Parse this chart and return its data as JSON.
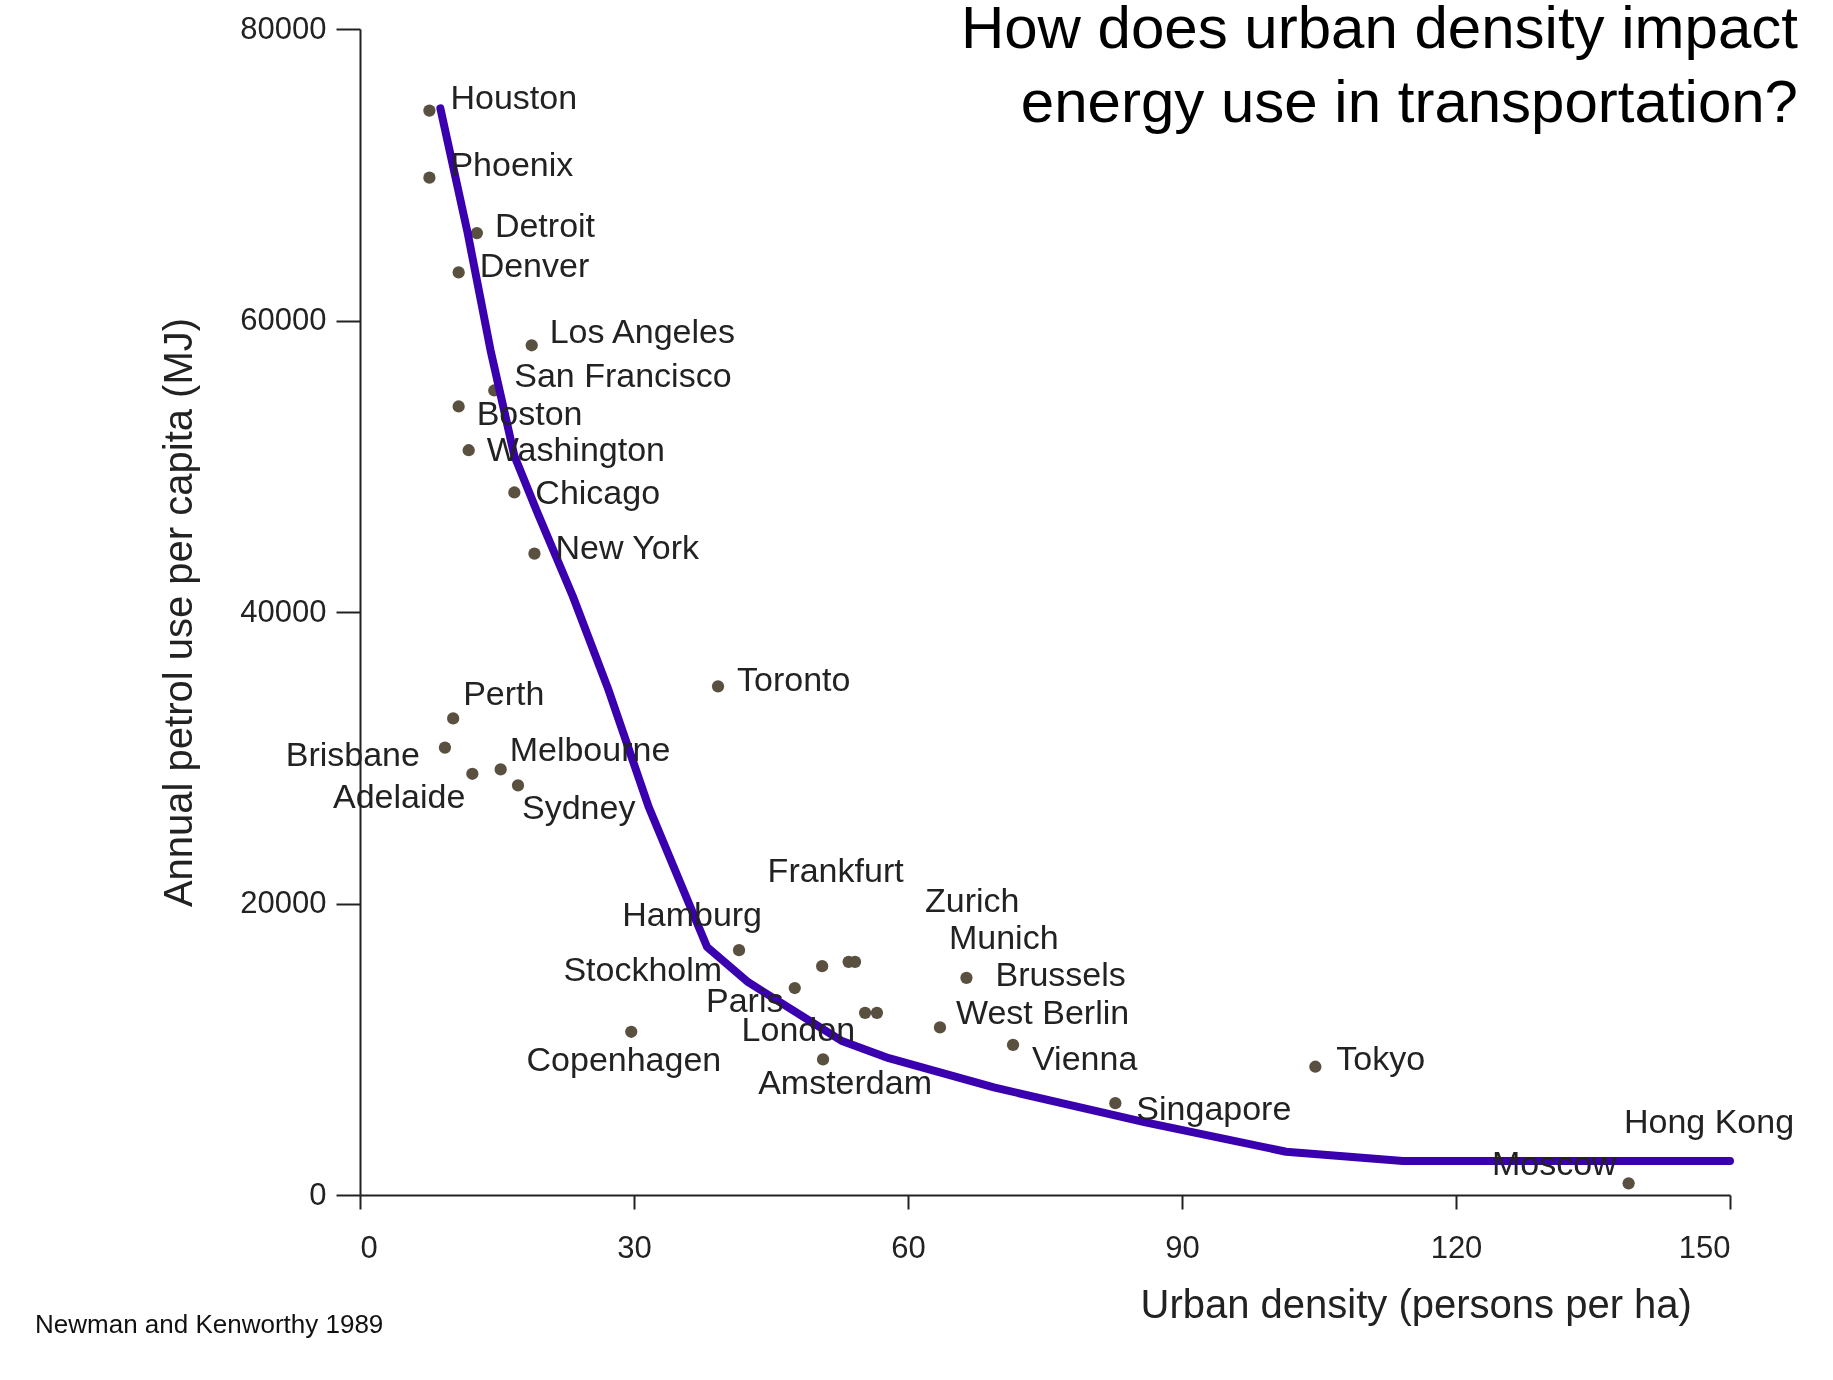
{
  "chart_data": {
    "type": "scatter",
    "title": "How does urban density impact energy use in transportation?",
    "xlabel": "Urban density (persons per ha)",
    "ylabel": "Annual petrol use per capita (MJ)",
    "xlim": [
      0,
      150
    ],
    "xticks": [
      0,
      30,
      60,
      90,
      120,
      150
    ],
    "ylim": [
      0,
      80000
    ],
    "yticks": [
      0,
      20000,
      40000,
      60000,
      80000
    ],
    "grid": false,
    "series": [
      {
        "marker": "circle",
        "color": "#5a5040",
        "x": [
          7.6,
          7.6,
          12.8,
          10.8,
          18.8,
          14.7,
          10.8,
          11.9,
          16.9,
          19.1,
          39.2,
          10.2,
          9.3,
          12.3,
          15.4,
          17.3,
          41.5,
          50.6,
          53.5,
          54.2,
          47.6,
          55.3,
          56.6,
          66.4,
          63.5,
          71.5,
          29.7,
          50.7,
          82.7,
          104.6,
          138.9
        ],
        "values": [
          74400,
          69800,
          66000,
          63300,
          58300,
          55200,
          54100,
          51100,
          48200,
          44000,
          34900,
          32700,
          30700,
          28900,
          29200,
          28100,
          16800,
          15700,
          16000,
          16000,
          14200,
          12500,
          12500,
          14900,
          11500,
          10300,
          11200,
          9300,
          6300,
          8800,
          800
        ]
      },
      {
        "type": "line",
        "marker": "none",
        "color": "#3a00b0",
        "line_style": "solid",
        "x": [
          8.8,
          11.8,
          14.3,
          16.9,
          19.5,
          23.3,
          27.2,
          31.6,
          38.0,
          42.5,
          52.7,
          57.9,
          69.4,
          86.0,
          101.4,
          114.2,
          150
        ],
        "values": [
          74550,
          65970,
          57940,
          50720,
          46700,
          41080,
          34670,
          26640,
          17010,
          14600,
          10590,
          9390,
          7380,
          4980,
          2970,
          2330,
          2330
        ]
      }
    ],
    "annotations": [
      {
        "text": "Houston",
        "x": 7.6,
        "y": 74400
      },
      {
        "text": "Phoenix",
        "x": 7.6,
        "y": 69800
      },
      {
        "text": "Detroit",
        "x": 12.8,
        "y": 66000
      },
      {
        "text": "Denver",
        "x": 10.8,
        "y": 63300
      },
      {
        "text": "Los Angeles",
        "x": 18.8,
        "y": 58300
      },
      {
        "text": "San Francisco",
        "x": 14.7,
        "y": 55200
      },
      {
        "text": "Boston",
        "x": 10.8,
        "y": 54100
      },
      {
        "text": "Washington",
        "x": 11.9,
        "y": 51100
      },
      {
        "text": "Chicago",
        "x": 16.9,
        "y": 48200
      },
      {
        "text": "New York",
        "x": 19.1,
        "y": 44000
      },
      {
        "text": "Toronto",
        "x": 39.2,
        "y": 34900
      },
      {
        "text": "Perth",
        "x": 10.2,
        "y": 32700
      },
      {
        "text": "Brisbane",
        "x": 9.3,
        "y": 30700
      },
      {
        "text": "Adelaide",
        "x": 12.3,
        "y": 28900
      },
      {
        "text": "Melbourne",
        "x": 15.4,
        "y": 29200
      },
      {
        "text": "Sydney",
        "x": 17.3,
        "y": 28100
      },
      {
        "text": "Hamburg",
        "x": 41.5,
        "y": 16800
      },
      {
        "text": "Stockholm",
        "x": 50.6,
        "y": 15700
      },
      {
        "text": "Frankfurt",
        "x": 53.5,
        "y": 16000
      },
      {
        "text": "Zurich",
        "x": 54.2,
        "y": 16000
      },
      {
        "text": "Paris",
        "x": 47.6,
        "y": 14200
      },
      {
        "text": "London",
        "x": 55.3,
        "y": 12500
      },
      {
        "text": "Munich",
        "x": 56.6,
        "y": 12500
      },
      {
        "text": "Brussels",
        "x": 66.4,
        "y": 14900
      },
      {
        "text": "West Berlin",
        "x": 63.5,
        "y": 11500
      },
      {
        "text": "Vienna",
        "x": 71.5,
        "y": 10300
      },
      {
        "text": "Copenhagen",
        "x": 29.7,
        "y": 11200
      },
      {
        "text": "Amsterdam",
        "x": 50.7,
        "y": 9300
      },
      {
        "text": "Singapore",
        "x": 82.7,
        "y": 6300
      },
      {
        "text": "Tokyo",
        "x": 104.6,
        "y": 8800
      },
      {
        "text": "Moscow",
        "x": 138.9,
        "y": 800
      },
      {
        "text": "Hong Kong",
        "x": 150,
        "y": 2330
      },
      "Newman and Kenworthy 1989"
    ]
  }
}
